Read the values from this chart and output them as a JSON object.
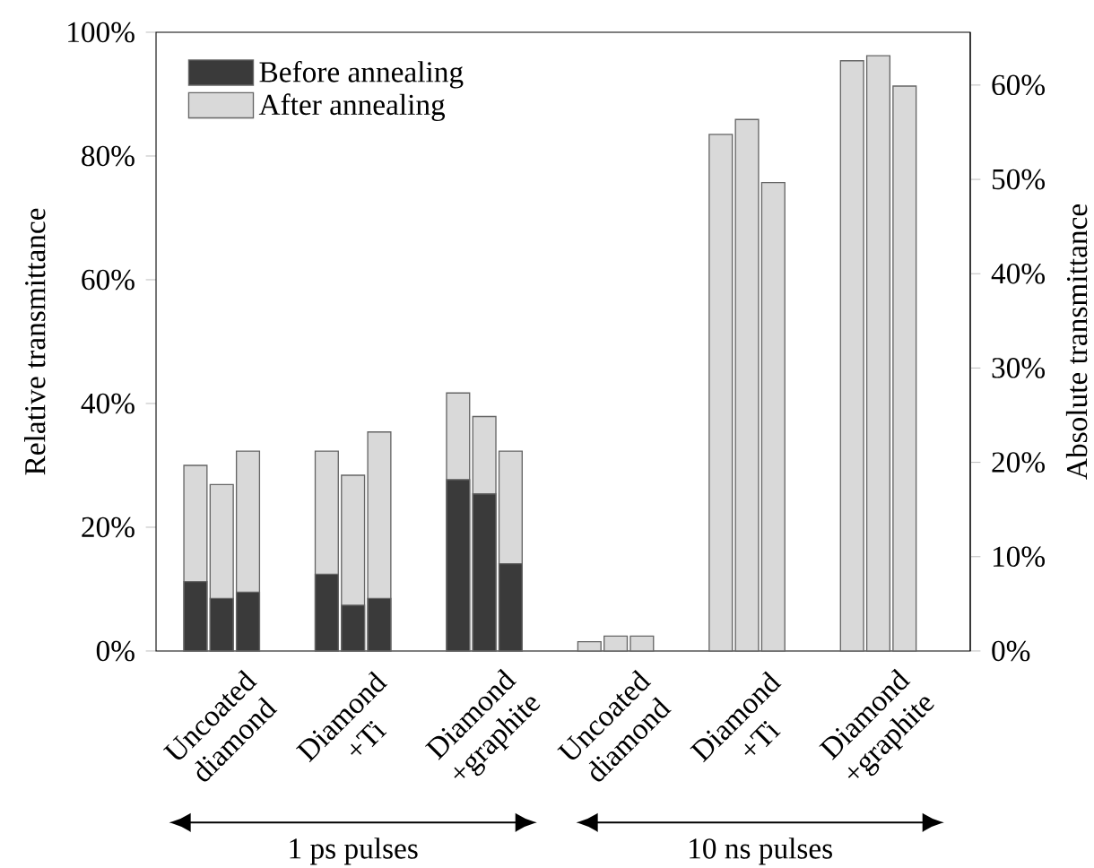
{
  "chart_data": {
    "type": "bar",
    "ylabel": "Relative transmittance",
    "y2label": "Absolute transmittance",
    "categories": [
      null,
      null,
      "Uncoated diamond",
      null,
      null,
      null,
      null,
      "Diamond +Ti",
      null,
      null,
      null,
      null,
      "Diamond +graphite",
      null,
      null,
      null,
      null,
      "Uncoated diamond",
      null,
      null,
      null,
      null,
      "Diamond +Ti",
      null,
      null,
      null,
      null,
      "Diamond +graphite",
      null,
      null,
      null
    ],
    "series": [
      {
        "name": "Before annealing",
        "color": "#3a3a3a",
        "values": [
          null,
          11.2,
          8.5,
          9.5,
          null,
          null,
          12.4,
          7.4,
          8.5,
          null,
          null,
          27.7,
          25.4,
          14.1,
          null,
          null,
          null,
          null,
          null,
          null,
          null,
          null,
          null,
          null,
          null,
          null,
          null,
          null,
          null,
          null,
          null
        ]
      },
      {
        "name": "After annealing",
        "color": "#d9d9d9",
        "values": [
          null,
          30.0,
          26.9,
          32.3,
          null,
          null,
          32.3,
          28.4,
          35.4,
          null,
          null,
          41.7,
          37.9,
          32.3,
          null,
          null,
          1.5,
          2.4,
          2.4,
          null,
          null,
          83.5,
          85.9,
          75.7,
          null,
          null,
          95.4,
          96.2,
          91.3,
          null,
          null
        ]
      }
    ],
    "ylim": [
      0,
      100
    ],
    "yticks": [
      {
        "value": 0,
        "label": "0%"
      },
      {
        "value": 20,
        "label": "20%"
      },
      {
        "value": 40,
        "label": "40%"
      },
      {
        "value": 60,
        "label": "60%"
      },
      {
        "value": 80,
        "label": "80%"
      },
      {
        "value": 100,
        "label": "100%"
      }
    ],
    "y2lim": [
      0,
      65.6
    ],
    "y2ticks": [
      {
        "value": 0,
        "label": "0%"
      },
      {
        "value": 10,
        "label": "10%"
      },
      {
        "value": 20,
        "label": "20%"
      },
      {
        "value": 30,
        "label": "30%"
      },
      {
        "value": 40,
        "label": "40%"
      },
      {
        "value": 50,
        "label": "50%"
      },
      {
        "value": 60,
        "label": "60%"
      }
    ],
    "legend": "top left",
    "annotations": [
      "1 ps pulses",
      "10 ns pulses"
    ]
  }
}
